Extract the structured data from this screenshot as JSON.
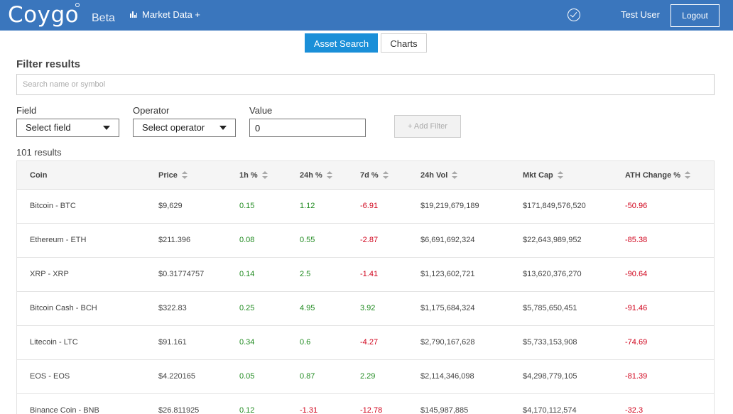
{
  "navbar": {
    "logo": "Coygo",
    "beta": "Beta",
    "market_data": "Market Data +",
    "user": "Test User",
    "logout": "Logout"
  },
  "tabs": [
    {
      "label": "Asset Search",
      "active": true
    },
    {
      "label": "Charts",
      "active": false
    }
  ],
  "filter": {
    "title": "Filter results",
    "search_placeholder": "Search name or symbol",
    "field_label": "Field",
    "field_value": "Select field",
    "operator_label": "Operator",
    "operator_value": "Select operator",
    "value_label": "Value",
    "value_value": "0",
    "add_filter": "+ Add Filter"
  },
  "results_count": "101 results",
  "table": {
    "columns": [
      "Coin",
      "Price",
      "1h %",
      "24h %",
      "7d %",
      "24h Vol",
      "Mkt Cap",
      "ATH Change %"
    ],
    "rows": [
      [
        "Bitcoin - BTC",
        "$9,629",
        "0.15",
        "1.12",
        "-6.91",
        "$19,219,679,189",
        "$171,849,576,520",
        "-50.96"
      ],
      [
        "Ethereum - ETH",
        "$211.396",
        "0.08",
        "0.55",
        "-2.87",
        "$6,691,692,324",
        "$22,643,989,952",
        "-85.38"
      ],
      [
        "XRP - XRP",
        "$0.31774757",
        "0.14",
        "2.5",
        "-1.41",
        "$1,123,602,721",
        "$13,620,376,270",
        "-90.64"
      ],
      [
        "Bitcoin Cash - BCH",
        "$322.83",
        "0.25",
        "4.95",
        "3.92",
        "$1,175,684,324",
        "$5,785,650,451",
        "-91.46"
      ],
      [
        "Litecoin - LTC",
        "$91.161",
        "0.34",
        "0.6",
        "-4.27",
        "$2,790,167,628",
        "$5,733,153,908",
        "-74.69"
      ],
      [
        "EOS - EOS",
        "$4.220165",
        "0.05",
        "0.87",
        "2.29",
        "$2,114,346,098",
        "$4,298,779,105",
        "-81.39"
      ],
      [
        "Binance Coin - BNB",
        "$26.811925",
        "0.12",
        "-1.31",
        "-12.78",
        "$145,987,885",
        "$4,170,112,574",
        "-32.3"
      ]
    ]
  },
  "colors": {
    "navbar": "#3a76bd",
    "active_tab": "#1a8fd8",
    "positive": "#1f8a1f",
    "negative": "#d0021b"
  }
}
